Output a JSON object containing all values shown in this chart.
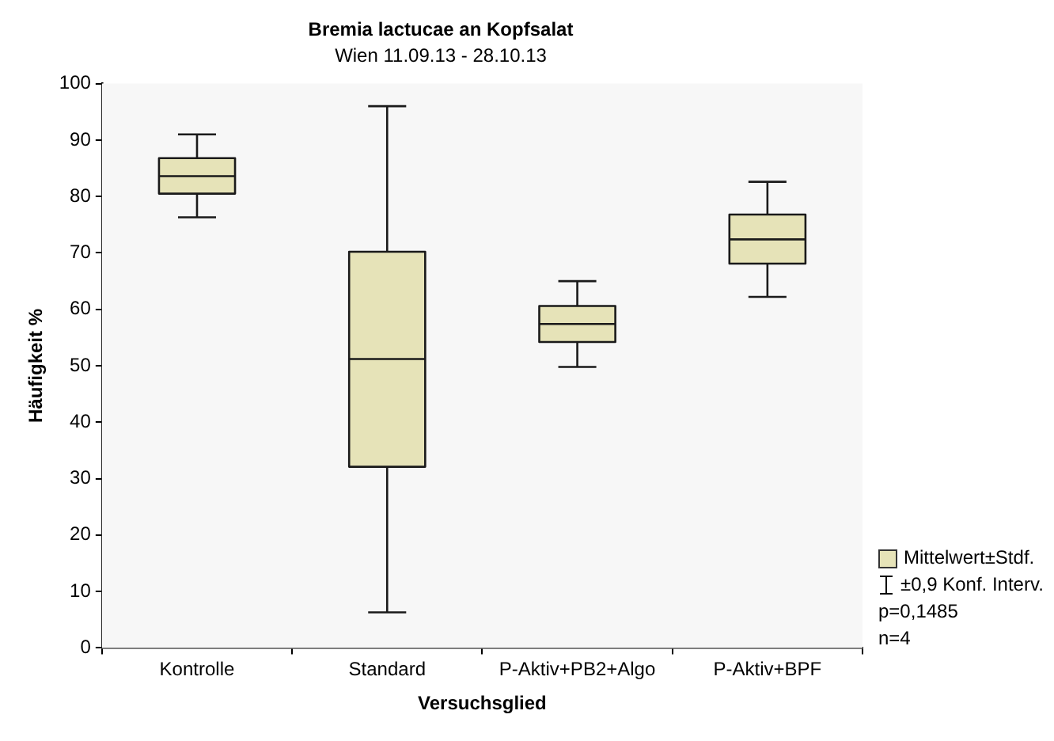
{
  "chart_data": {
    "type": "box",
    "title": "Bremia lactucae an Kopfsalat",
    "subtitle": "Wien 11.09.13 - 28.10.13",
    "xlabel": "Versuchsglied",
    "ylabel": "Häufigkeit %",
    "categories": [
      "Kontrolle",
      "Standard",
      "P-Aktiv+PB2+Algo",
      "P-Aktiv+BPF"
    ],
    "series": [
      {
        "name": "Mittelwert±Stdf.",
        "color": "#e6e3b8",
        "boxes": [
          {
            "low": 76.3,
            "q1": 80.5,
            "median": 83.6,
            "q3": 86.8,
            "high": 91
          },
          {
            "low": 6.3,
            "q1": 32.1,
            "median": 51.2,
            "q3": 70.2,
            "high": 96
          },
          {
            "low": 49.8,
            "q1": 54.2,
            "median": 57.4,
            "q3": 60.6,
            "high": 65
          },
          {
            "low": 62.2,
            "q1": 68.1,
            "median": 72.4,
            "q3": 76.8,
            "high": 82.6
          }
        ]
      }
    ],
    "ylim": [
      0,
      100
    ],
    "yticks": [
      0,
      10,
      20,
      30,
      40,
      50,
      60,
      70,
      80,
      90,
      100
    ],
    "grid": false,
    "legend": "bottom right",
    "annotations": [
      "±0,9 Konf. Interv.",
      "p=0,1485",
      "n=4"
    ]
  }
}
